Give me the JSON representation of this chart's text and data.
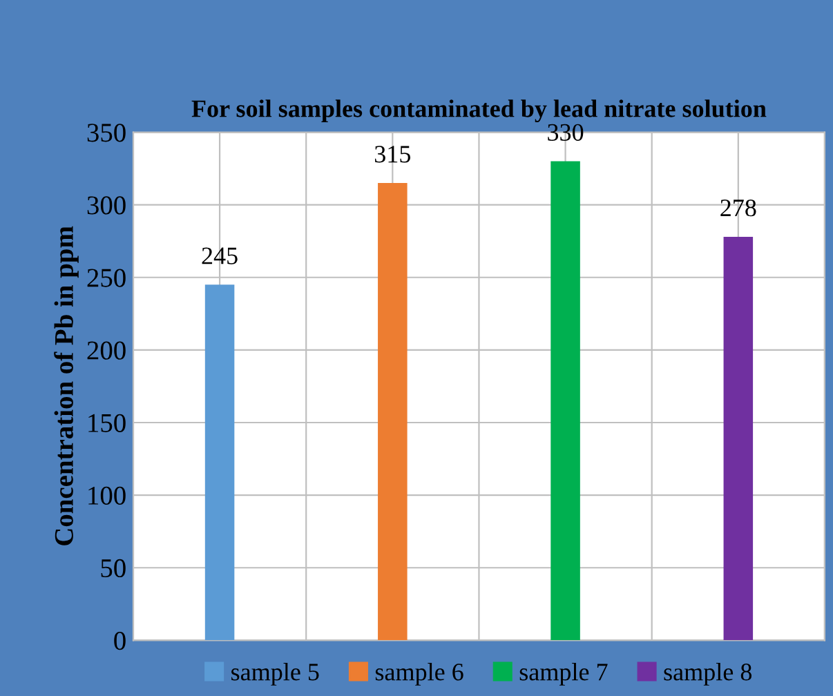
{
  "chart_data": {
    "type": "bar",
    "title": "For soil samples contaminated by lead nitrate solution",
    "ylabel": "Concentration of Pb in ppm",
    "categories": [
      null,
      null,
      null,
      null
    ],
    "series": [
      {
        "name": "sample 5",
        "color": "#5b9bd5",
        "values": [
          245,
          null,
          null,
          null
        ]
      },
      {
        "name": "sample 6",
        "color": "#ed7d31",
        "values": [
          null,
          315,
          null,
          null
        ]
      },
      {
        "name": "sample 7",
        "color": "#00b050",
        "values": [
          null,
          null,
          330,
          null
        ]
      },
      {
        "name": "sample 8",
        "color": "#7030a0",
        "values": [
          null,
          null,
          null,
          278
        ]
      }
    ],
    "ylim": [
      0,
      350
    ],
    "yticks": [
      0,
      50,
      100,
      150,
      200,
      250,
      300,
      350
    ],
    "grid": true,
    "legend": "bottom",
    "data_labels": true
  }
}
